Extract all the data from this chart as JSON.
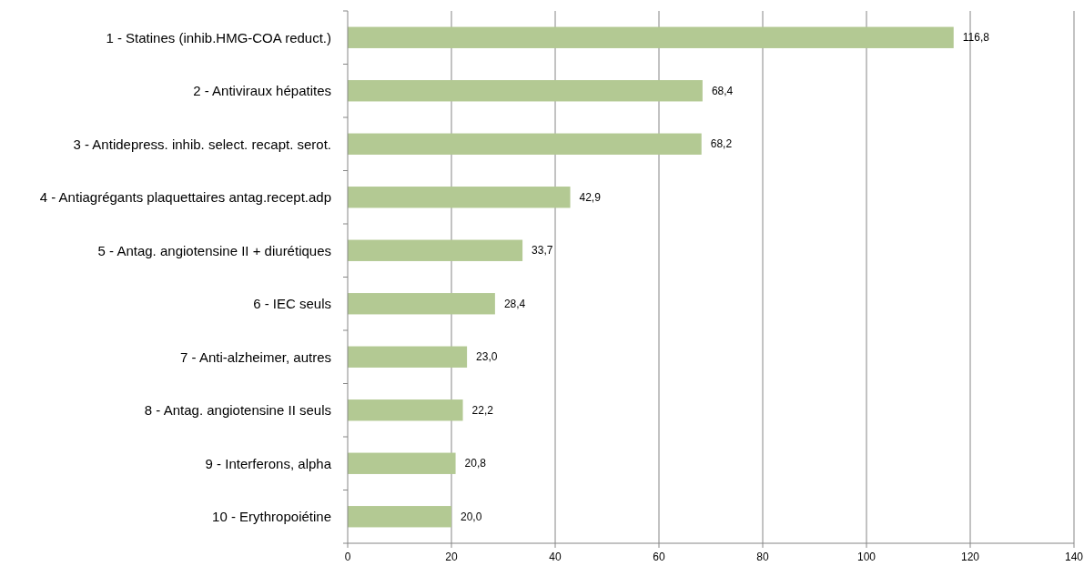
{
  "chart_data": {
    "type": "bar",
    "orientation": "horizontal",
    "categories": [
      "1 - Statines (inhib.HMG-COA reduct.)",
      "2 - Antiviraux hépatites",
      "3 - Antidepress. inhib. select. recapt. serot.",
      "4 - Antiagrégants plaquettaires antag.recept.adp",
      "5 - Antag. angiotensine II + diurétiques",
      "6 - IEC seuls",
      "7 - Anti-alzheimer, autres",
      "8 - Antag. angiotensine II seuls",
      "9 - Interferons,  alpha",
      "10 - Erythropoiétine"
    ],
    "values": [
      116.8,
      68.4,
      68.2,
      42.9,
      33.7,
      28.4,
      23.0,
      22.2,
      20.8,
      20.0
    ],
    "value_labels": [
      "116,8",
      "68,4",
      "68,2",
      "42,9",
      "33,7",
      "28,4",
      "23,0",
      "22,2",
      "20,8",
      "20,0"
    ],
    "color": "#b3c993",
    "xlim": [
      0,
      140
    ],
    "xticks": [
      0,
      20,
      40,
      60,
      80,
      100,
      120,
      140
    ],
    "grid": "x"
  }
}
